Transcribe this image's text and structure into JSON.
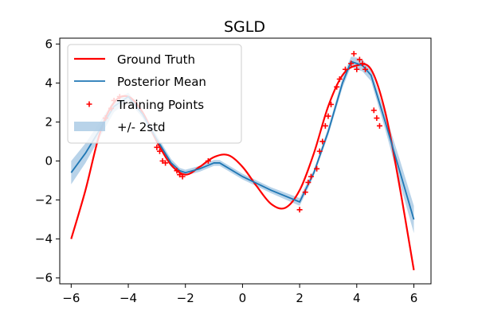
{
  "chart_data": {
    "type": "line",
    "title": "SGLD",
    "xlabel": "",
    "ylabel": "",
    "xlim": [
      -6.4,
      6.6
    ],
    "ylim": [
      -6.3,
      6.3
    ],
    "xticks": [
      -6,
      -4,
      -2,
      0,
      2,
      4,
      6
    ],
    "yticks": [
      -6,
      -4,
      -2,
      0,
      2,
      4,
      6
    ],
    "x_tick_labels": [
      "−6",
      "−4",
      "−2",
      "0",
      "2",
      "4",
      "6"
    ],
    "y_tick_labels": [
      "−6",
      "−4",
      "−2",
      "0",
      "2",
      "4",
      "6"
    ],
    "grid": false,
    "legend_position": "upper-left",
    "colors": {
      "ground_truth": "#ff0000",
      "posterior_mean": "#1f77b4",
      "band": "#a6c8e3",
      "training_points": "#ff0000"
    },
    "series": [
      {
        "name": "Ground Truth",
        "kind": "line",
        "x": [
          -6.0,
          -5.5,
          -5.0,
          -4.5,
          -4.0,
          -3.5,
          -3.0,
          -2.5,
          -2.0,
          -1.5,
          -1.0,
          -0.5,
          0.0,
          0.5,
          1.0,
          1.5,
          2.0,
          2.5,
          3.0,
          3.5,
          4.0,
          4.5,
          5.0,
          5.5,
          6.0
        ],
        "y": [
          -4.0,
          -1.5,
          1.4,
          3.0,
          3.3,
          2.5,
          1.0,
          -0.2,
          -0.7,
          -0.3,
          0.2,
          0.3,
          -0.3,
          -1.3,
          -2.2,
          -2.4,
          -1.5,
          0.4,
          2.8,
          4.4,
          4.9,
          4.7,
          2.5,
          -1.3,
          -5.6
        ]
      },
      {
        "name": "Posterior Mean",
        "kind": "line",
        "x": [
          -6.0,
          -5.5,
          -5.0,
          -4.5,
          -4.0,
          -3.5,
          -3.0,
          -2.5,
          -2.2,
          -2.0,
          -1.5,
          -1.0,
          -0.8,
          0.0,
          1.0,
          2.0,
          2.2,
          2.5,
          3.0,
          3.5,
          3.8,
          4.0,
          4.2,
          4.5,
          5.0,
          5.5,
          6.0
        ],
        "y": [
          -0.6,
          0.4,
          1.6,
          2.8,
          3.3,
          2.4,
          1.1,
          -0.1,
          -0.5,
          -0.6,
          -0.4,
          -0.1,
          -0.1,
          -0.8,
          -1.5,
          -2.1,
          -1.5,
          -0.6,
          1.5,
          4.0,
          5.1,
          5.0,
          4.9,
          4.4,
          2.0,
          -0.5,
          -3.0
        ]
      },
      {
        "name": "+/- 2std",
        "kind": "band",
        "x": [
          -6.0,
          -5.5,
          -5.0,
          -4.5,
          -4.0,
          -3.5,
          -3.0,
          -2.5,
          -2.2,
          -2.0,
          -1.5,
          -1.0,
          -0.8,
          0.0,
          1.0,
          2.0,
          2.2,
          2.5,
          3.0,
          3.5,
          3.8,
          4.0,
          4.2,
          4.5,
          5.0,
          5.5,
          6.0
        ],
        "upper": [
          0.0,
          0.9,
          2.0,
          3.1,
          3.5,
          2.6,
          1.3,
          0.1,
          -0.35,
          -0.45,
          -0.25,
          0.05,
          0.05,
          -0.65,
          -1.35,
          -1.9,
          -1.3,
          -0.45,
          1.7,
          4.25,
          5.35,
          5.3,
          5.2,
          4.7,
          2.4,
          0.1,
          -2.3
        ],
        "lower": [
          -1.2,
          -0.1,
          1.2,
          2.5,
          3.1,
          2.2,
          0.9,
          -0.3,
          -0.65,
          -0.75,
          -0.55,
          -0.25,
          -0.25,
          -0.95,
          -1.65,
          -2.3,
          -1.7,
          -0.75,
          1.3,
          3.75,
          4.85,
          4.7,
          4.6,
          4.1,
          1.6,
          -1.1,
          -3.7
        ]
      },
      {
        "name": "Training Points",
        "kind": "scatter",
        "x": [
          -4.8,
          -4.6,
          -4.5,
          -4.3,
          -3.0,
          -2.9,
          -2.8,
          -2.7,
          -2.3,
          -2.2,
          -2.1,
          -1.2,
          2.0,
          2.2,
          2.3,
          2.4,
          2.6,
          2.7,
          2.8,
          2.9,
          3.0,
          3.1,
          3.3,
          3.4,
          3.6,
          3.8,
          3.9,
          4.0,
          4.1,
          4.2,
          4.3,
          4.6,
          4.7,
          4.8
        ],
        "y": [
          2.2,
          2.7,
          3.1,
          3.3,
          0.7,
          0.5,
          0.0,
          -0.1,
          -0.5,
          -0.7,
          -0.8,
          0.0,
          -2.5,
          -1.6,
          -1.1,
          -0.8,
          -0.4,
          0.5,
          1.0,
          1.8,
          2.3,
          2.9,
          3.8,
          4.2,
          4.7,
          5.0,
          5.5,
          4.7,
          5.2,
          5.0,
          4.7,
          2.6,
          2.2,
          1.8
        ]
      }
    ]
  }
}
